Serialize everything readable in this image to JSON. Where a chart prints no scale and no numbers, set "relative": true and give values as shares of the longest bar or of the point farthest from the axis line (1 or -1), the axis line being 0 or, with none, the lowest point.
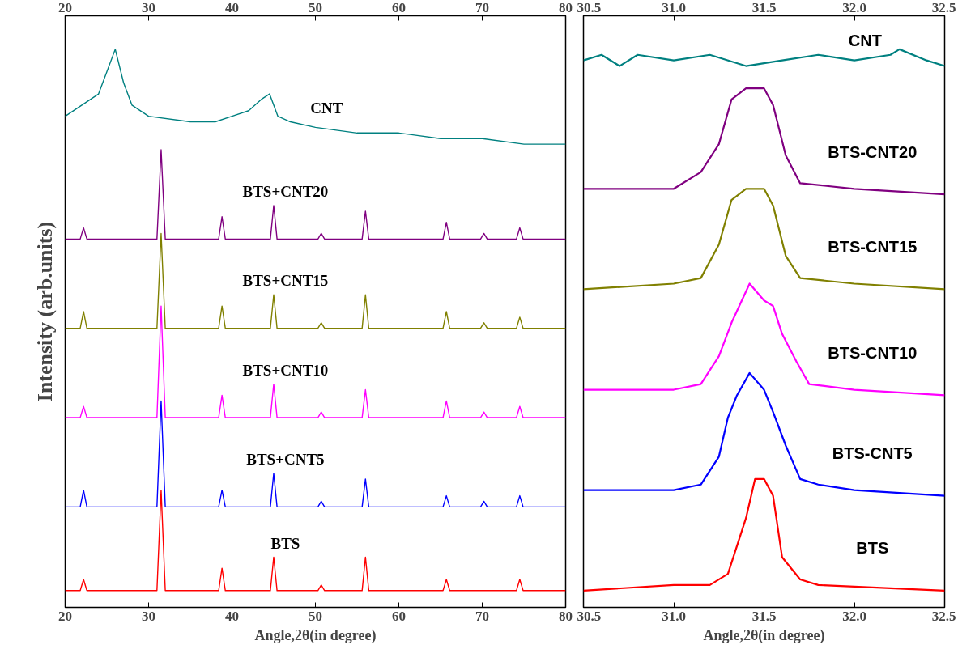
{
  "chart_data": [
    {
      "type": "line",
      "relative": true,
      "xlabel": "Angle,2θ(in degree)",
      "ylabel": "Intensity (arb.units)",
      "xlim": [
        20,
        80
      ],
      "xticks": [
        20,
        30,
        40,
        50,
        60,
        70,
        80
      ],
      "x2lim": [
        20,
        80
      ],
      "x2ticks": [
        20,
        30,
        40,
        50,
        60,
        70,
        80
      ],
      "tick_labels": "x",
      "grid": false,
      "legend": false,
      "marker": "none",
      "line_style": "solid",
      "x": [
        20,
        21.8,
        22.2,
        22.6,
        31.0,
        31.5,
        32.0,
        38.4,
        38.8,
        39.2,
        44.6,
        45.0,
        45.4,
        50.3,
        50.7,
        51.1,
        55.6,
        56.0,
        56.4,
        65.3,
        65.7,
        66.1,
        69.8,
        70.2,
        70.6,
        74.1,
        74.5,
        74.9,
        80
      ],
      "series": [
        {
          "name": "CNT",
          "color": "#008080",
          "x": [
            20,
            22,
            24,
            25,
            26,
            27,
            28,
            30,
            35,
            38,
            40,
            42,
            43.5,
            44.5,
            45.5,
            47,
            50,
            55,
            60,
            65,
            70,
            75,
            80
          ],
          "values": [
            0.88,
            0.9,
            0.92,
            0.96,
            1.0,
            0.94,
            0.9,
            0.88,
            0.87,
            0.87,
            0.88,
            0.89,
            0.91,
            0.92,
            0.88,
            0.87,
            0.86,
            0.85,
            0.85,
            0.84,
            0.84,
            0.83,
            0.83
          ]
        },
        {
          "name": "BTS+CNT20",
          "color": "#800080",
          "values": [
            0.66,
            0.66,
            0.68,
            0.66,
            0.66,
            0.82,
            0.66,
            0.66,
            0.7,
            0.66,
            0.66,
            0.72,
            0.66,
            0.66,
            0.67,
            0.66,
            0.66,
            0.71,
            0.66,
            0.66,
            0.69,
            0.66,
            0.66,
            0.67,
            0.66,
            0.66,
            0.68,
            0.66,
            0.66
          ]
        },
        {
          "name": "BTS+CNT15",
          "color": "#808000",
          "values": [
            0.5,
            0.5,
            0.53,
            0.5,
            0.5,
            0.67,
            0.5,
            0.5,
            0.54,
            0.5,
            0.5,
            0.56,
            0.5,
            0.5,
            0.51,
            0.5,
            0.5,
            0.56,
            0.5,
            0.5,
            0.53,
            0.5,
            0.5,
            0.51,
            0.5,
            0.5,
            0.52,
            0.5,
            0.5
          ]
        },
        {
          "name": "BTS+CNT10",
          "color": "#ff00ff",
          "values": [
            0.34,
            0.34,
            0.36,
            0.34,
            0.34,
            0.54,
            0.34,
            0.34,
            0.38,
            0.34,
            0.34,
            0.4,
            0.34,
            0.34,
            0.35,
            0.34,
            0.34,
            0.39,
            0.34,
            0.34,
            0.37,
            0.34,
            0.34,
            0.35,
            0.34,
            0.34,
            0.36,
            0.34,
            0.34
          ]
        },
        {
          "name": "BTS+CNT5",
          "color": "#0000ff",
          "values": [
            0.18,
            0.18,
            0.21,
            0.18,
            0.18,
            0.37,
            0.18,
            0.18,
            0.21,
            0.18,
            0.18,
            0.24,
            0.18,
            0.18,
            0.19,
            0.18,
            0.18,
            0.23,
            0.18,
            0.18,
            0.2,
            0.18,
            0.18,
            0.19,
            0.18,
            0.18,
            0.2,
            0.18,
            0.18
          ]
        },
        {
          "name": "BTS",
          "color": "#ff0000",
          "values": [
            0.03,
            0.03,
            0.05,
            0.03,
            0.03,
            0.21,
            0.03,
            0.03,
            0.07,
            0.03,
            0.03,
            0.09,
            0.03,
            0.03,
            0.04,
            0.03,
            0.03,
            0.09,
            0.03,
            0.03,
            0.05,
            0.03,
            0.03,
            0.03,
            0.03,
            0.03,
            0.05,
            0.03,
            0.03
          ]
        }
      ]
    },
    {
      "type": "line",
      "relative": true,
      "xlabel": "Angle,2θ(in degree)",
      "xlim": [
        30.5,
        32.5
      ],
      "xticks": [
        {
          "value": 30.5,
          "label": "30.5"
        },
        {
          "value": 31,
          "label": "31.0"
        },
        {
          "value": 31.5,
          "label": "31.5"
        },
        {
          "value": 32,
          "label": "32.0"
        },
        {
          "value": 32.5,
          "label": "32.5"
        }
      ],
      "x2lim": [
        30.5,
        32.5
      ],
      "x2ticks": [
        {
          "value": 30.5,
          "label": "30.5"
        },
        {
          "value": 31,
          "label": "31.0"
        },
        {
          "value": 31.5,
          "label": "31.5"
        },
        {
          "value": 32,
          "label": "32.0"
        },
        {
          "value": 32.5,
          "label": "32.5"
        }
      ],
      "tick_labels": "x",
      "grid": false,
      "legend": false,
      "marker": "none",
      "line_style": "solid",
      "series": [
        {
          "name": "CNT",
          "color": "#008080",
          "x": [
            30.5,
            30.6,
            30.7,
            30.8,
            31.0,
            31.2,
            31.4,
            31.6,
            31.8,
            32.0,
            32.2,
            32.25,
            32.4,
            32.5
          ],
          "values": [
            0.98,
            0.99,
            0.97,
            0.99,
            0.98,
            0.99,
            0.97,
            0.98,
            0.99,
            0.98,
            0.99,
            1.0,
            0.98,
            0.97
          ]
        },
        {
          "name": "BTS-CNT20",
          "color": "#800080",
          "x": [
            30.5,
            31.0,
            31.15,
            31.25,
            31.32,
            31.4,
            31.5,
            31.55,
            31.62,
            31.7,
            32.0,
            32.5
          ],
          "values": [
            0.75,
            0.75,
            0.78,
            0.83,
            0.91,
            0.93,
            0.93,
            0.9,
            0.81,
            0.76,
            0.75,
            0.74
          ]
        },
        {
          "name": "BTS-CNT15",
          "color": "#808000",
          "x": [
            30.5,
            31.0,
            31.15,
            31.25,
            31.32,
            31.4,
            31.5,
            31.55,
            31.62,
            31.7,
            32.0,
            32.5
          ],
          "values": [
            0.57,
            0.58,
            0.59,
            0.65,
            0.73,
            0.75,
            0.75,
            0.72,
            0.63,
            0.59,
            0.58,
            0.57
          ]
        },
        {
          "name": "BTS-CNT10",
          "color": "#ff00ff",
          "x": [
            30.5,
            31.0,
            31.15,
            31.25,
            31.32,
            31.42,
            31.5,
            31.55,
            31.6,
            31.68,
            31.75,
            32.0,
            32.5
          ],
          "values": [
            0.39,
            0.39,
            0.4,
            0.45,
            0.51,
            0.58,
            0.55,
            0.54,
            0.49,
            0.44,
            0.4,
            0.39,
            0.38
          ]
        },
        {
          "name": "BTS-CNT5",
          "color": "#0000ff",
          "x": [
            30.5,
            31.0,
            31.15,
            31.25,
            31.3,
            31.35,
            31.42,
            31.5,
            31.55,
            31.62,
            31.7,
            31.8,
            32.0,
            32.5
          ],
          "values": [
            0.21,
            0.21,
            0.22,
            0.27,
            0.34,
            0.38,
            0.42,
            0.39,
            0.35,
            0.29,
            0.23,
            0.22,
            0.21,
            0.2
          ]
        },
        {
          "name": "BTS",
          "color": "#ff0000",
          "x": [
            30.5,
            31.0,
            31.2,
            31.3,
            31.4,
            31.45,
            31.5,
            31.55,
            31.6,
            31.7,
            31.8,
            32.5
          ],
          "values": [
            0.03,
            0.04,
            0.04,
            0.06,
            0.16,
            0.23,
            0.23,
            0.2,
            0.09,
            0.05,
            0.04,
            0.03
          ]
        }
      ]
    }
  ]
}
